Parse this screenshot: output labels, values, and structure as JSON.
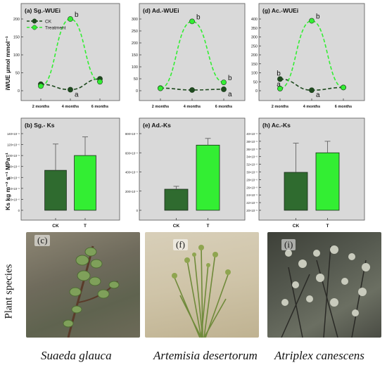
{
  "chart_data": [
    {
      "id": "a",
      "type": "line",
      "title": "(a) Sg.-WUEi",
      "ylabel": "iWUE  μmol mmol⁻¹",
      "categories": [
        "2 months",
        "4 months",
        "6 months"
      ],
      "ylim": [
        0,
        200
      ],
      "yticks": [
        0,
        50,
        100,
        150,
        200
      ],
      "ytick_labels": [
        "0",
        "50",
        "100",
        "150",
        "200"
      ],
      "legend": {
        "position": "top-left",
        "entries": [
          "CK",
          "Treatment"
        ]
      },
      "series": [
        {
          "name": "CK",
          "values": [
            18,
            3,
            33
          ],
          "color": "#1f4a1f"
        },
        {
          "name": "Treatment",
          "values": [
            13,
            200,
            25
          ],
          "color": "#33ee33"
        }
      ],
      "annotations": [
        {
          "text": "b",
          "series": 1,
          "index": 1
        },
        {
          "text": "a",
          "series": 0,
          "index": 1
        }
      ]
    },
    {
      "id": "d",
      "type": "line",
      "title": "(d) Ad.-WUEi",
      "categories": [
        "2 months",
        "4 months",
        "6 months"
      ],
      "ylim": [
        0,
        300
      ],
      "yticks": [
        0,
        50,
        100,
        150,
        200,
        250,
        300
      ],
      "ytick_labels": [
        "0",
        "50",
        "100",
        "150",
        "200",
        "250",
        "300"
      ],
      "series": [
        {
          "name": "CK",
          "values": [
            11,
            3,
            6
          ],
          "color": "#1f4a1f"
        },
        {
          "name": "Treatment",
          "values": [
            10,
            290,
            35
          ],
          "color": "#33ee33"
        }
      ],
      "annotations": [
        {
          "text": "b",
          "series": 1,
          "index": 1
        },
        {
          "text": "b",
          "series": 1,
          "index": 2
        },
        {
          "text": "a",
          "series": 0,
          "index": 2
        }
      ]
    },
    {
      "id": "g",
      "type": "line",
      "title": "(g) Ac.-WUEi",
      "categories": [
        "2 months",
        "4 months",
        "6 months"
      ],
      "ylim": [
        0,
        400
      ],
      "yticks": [
        0,
        50,
        100,
        150,
        200,
        250,
        300,
        350,
        400
      ],
      "ytick_labels": [
        "0",
        "50",
        "100",
        "150",
        "200",
        "250",
        "300",
        "350",
        "400"
      ],
      "series": [
        {
          "name": "CK",
          "values": [
            65,
            3,
            18
          ],
          "color": "#1f4a1f"
        },
        {
          "name": "Treatment",
          "values": [
            12,
            390,
            18
          ],
          "color": "#33ee33"
        }
      ],
      "annotations": [
        {
          "text": "b",
          "series": 1,
          "index": 1
        },
        {
          "text": "b",
          "series": 0,
          "index": 0
        },
        {
          "text": "a",
          "series": 1,
          "index": 0
        },
        {
          "text": "a",
          "series": 0,
          "index": 1
        }
      ]
    },
    {
      "id": "b",
      "type": "bar",
      "title": "(b) Sg.- Ks",
      "ylabel": "Ks  kg m⁻² s⁻¹ MPa⁻¹",
      "categories": [
        "CK",
        "T"
      ],
      "values": [
        7.3e-05,
        0.0001
      ],
      "errors": [
        4.8e-05,
        3.4e-05
      ],
      "colors": [
        "#2f6b2f",
        "#33ee33"
      ],
      "ylim": [
        0,
        0.00014
      ],
      "yticks": [
        0,
        2e-05,
        4e-05,
        6e-05,
        8e-05,
        0.0001,
        0.00012,
        0.00014
      ],
      "ytick_labels": [
        "0",
        "20×10⁻⁶",
        "40×10⁻⁶",
        "60×10⁻⁶",
        "80×10⁻⁶",
        "100×10⁻⁶",
        "120×10⁻⁶",
        "140×10⁻⁶"
      ]
    },
    {
      "id": "e",
      "type": "bar",
      "title": "(e) Ad.-Ks",
      "categories": [
        "CK",
        "T"
      ],
      "values": [
        0.00022,
        0.00068
      ],
      "errors": [
        3e-05,
        7e-05
      ],
      "colors": [
        "#2f6b2f",
        "#33ee33"
      ],
      "ylim": [
        0,
        0.0008
      ],
      "yticks": [
        0,
        0.0002,
        0.0004,
        0.0006,
        0.0008
      ],
      "ytick_labels": [
        "0",
        "200×10⁻⁶",
        "400×10⁻⁶",
        "600×10⁻⁶",
        "800×10⁻⁶"
      ]
    },
    {
      "id": "h",
      "type": "bar",
      "title": "(h) Ac.-Ks",
      "categories": [
        "CK",
        "T"
      ],
      "values": [
        2.99e-05,
        3.5e-05
      ],
      "errors": [
        7.6e-06,
        3e-06
      ],
      "colors": [
        "#2f6b2f",
        "#33ee33"
      ],
      "ylim": [
        2e-05,
        4e-05
      ],
      "yticks": [
        2e-05,
        2.2e-05,
        2.4e-05,
        2.6e-05,
        2.8e-05,
        3e-05,
        3.2e-05,
        3.4e-05,
        3.6e-05,
        3.8e-05,
        4e-05
      ],
      "ytick_labels": [
        "20×10⁻⁶",
        "22×10⁻⁶",
        "24×10⁻⁶",
        "26×10⁻⁶",
        "28×10⁻⁶",
        "30×10⁻⁶",
        "32×10⁻⁶",
        "34×10⁻⁶",
        "36×10⁻⁶",
        "38×10⁻⁶",
        "40×10⁻⁶"
      ]
    }
  ],
  "photos": {
    "row_label": "Plant species",
    "panels": [
      {
        "letter": "(c)",
        "species": "Suaeda glauca"
      },
      {
        "letter": "(f)",
        "species": "Artemisia desertorum"
      },
      {
        "letter": "(i)",
        "species": "Atriplex canescens"
      }
    ]
  }
}
